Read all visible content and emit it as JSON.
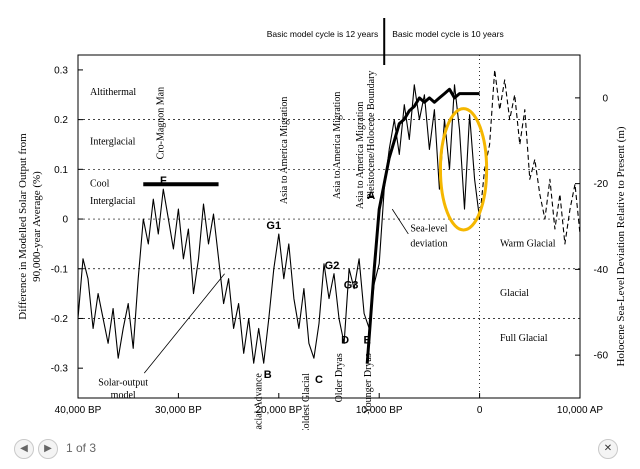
{
  "chart_data": {
    "type": "line",
    "y_left_label_line1": "Difference in Modelled Solar Output  from",
    "y_left_label_line2": "90,000-year Average (%)",
    "y_right_label": "Holocene Sea-Level Deviation Relative to Present (m)",
    "x_ticks": [
      {
        "value": -40000,
        "label": "40,000 BP"
      },
      {
        "value": -30000,
        "label": "30,000 BP"
      },
      {
        "value": -20000,
        "label": "20,000 BP"
      },
      {
        "value": -10000,
        "label": "10,000 BP"
      },
      {
        "value": 0,
        "label": "0"
      },
      {
        "value": 10000,
        "label": "10,000 AP"
      }
    ],
    "y_left_ticks": [
      {
        "value": 0.3,
        "label": "0.3"
      },
      {
        "value": 0.2,
        "label": "0.2"
      },
      {
        "value": 0.1,
        "label": "0.1"
      },
      {
        "value": 0,
        "label": "0"
      },
      {
        "value": -0.1,
        "label": "-0.1"
      },
      {
        "value": -0.2,
        "label": "-0.2"
      },
      {
        "value": -0.3,
        "label": "-0.3"
      }
    ],
    "y_right_ticks": [
      {
        "value": 0,
        "label": "0"
      },
      {
        "value": -20,
        "label": "-20"
      },
      {
        "value": -40,
        "label": "-40"
      },
      {
        "value": -60,
        "label": "-60"
      }
    ],
    "xlim": [
      -40000,
      10000
    ],
    "ylim_left": [
      -0.36,
      0.33
    ],
    "ylim_right": [
      -70,
      10
    ],
    "gridlines_y_left": [
      0.2,
      0.1,
      0,
      -0.1,
      -0.2
    ],
    "zone_labels_upper": [
      {
        "text": "Altithermal",
        "y": 0.25
      },
      {
        "text": "Interglacial",
        "y": 0.15
      },
      {
        "text": "Cool",
        "y": 0.065
      },
      {
        "text": "Interglacial",
        "y": 0.03
      }
    ],
    "zone_labels_lower": [
      {
        "text": "Warm Glacial",
        "y": -0.055
      },
      {
        "text": "Glacial",
        "y": -0.155
      },
      {
        "text": "Full Glacial",
        "y": -0.245
      }
    ],
    "events": [
      {
        "text": "Cro-Magnon Man",
        "x": -31500,
        "y": 0.12
      },
      {
        "text": "Asia to America Migration",
        "x": -19200,
        "y": 0.03
      },
      {
        "text": "Asia to America Migration",
        "x": -13900,
        "y": 0.04
      },
      {
        "text": "Pleistocene/Holocene Boundary",
        "x": -10500,
        "y": 0.04
      },
      {
        "text": "Asia to America Migration",
        "x": -11600,
        "y": 0.02
      }
    ],
    "lower_events": [
      {
        "text": "Farthest Glacial Advance",
        "x": -21700,
        "y": -0.31
      },
      {
        "text": "Coldest Glacial",
        "x": -17000,
        "y": -0.31
      },
      {
        "text": "Older Dryas",
        "x": -13700,
        "y": -0.27
      },
      {
        "text": "Younger Dryas",
        "x": -10800,
        "y": -0.27
      }
    ],
    "point_labels": [
      {
        "text": "F",
        "x": -31500,
        "y": 0.07
      },
      {
        "text": "G1",
        "x": -20500,
        "y": -0.02
      },
      {
        "text": "G2",
        "x": -14700,
        "y": -0.1
      },
      {
        "text": "G3",
        "x": -12800,
        "y": -0.14
      },
      {
        "text": "A",
        "x": -10800,
        "y": 0.04
      },
      {
        "text": "B",
        "x": -21100,
        "y": -0.32
      },
      {
        "text": "C",
        "x": -16000,
        "y": -0.33
      },
      {
        "text": "D",
        "x": -13400,
        "y": -0.25
      },
      {
        "text": "E",
        "x": -11200,
        "y": -0.25
      }
    ],
    "annotations": {
      "model_left": "Basic model cycle is 12 years",
      "model_right": "Basic model cycle is 10 years",
      "model_boundary_x": -9500,
      "sea_level_label_1": "Sea-level",
      "sea_level_label_2": "deviation",
      "solar_label_1": "Solar-output",
      "solar_label_2": "model",
      "cro_magnon_bar": {
        "x_start": -33500,
        "x_end": -26000,
        "y": 0.07
      },
      "present_line_x": 0,
      "highlight_ellipse": {
        "cx": -1600,
        "cy": 0.1,
        "rx": 2300,
        "ry": 0.122,
        "color": "#f5b700"
      }
    },
    "series": [
      {
        "id": "solar-output-model",
        "style": "thin",
        "x": [
          -40000,
          -39500,
          -39000,
          -38500,
          -38000,
          -37500,
          -37000,
          -36500,
          -36000,
          -35500,
          -35000,
          -34500,
          -34000,
          -33500,
          -33000,
          -32500,
          -32000,
          -31500,
          -31000,
          -30500,
          -30000,
          -29500,
          -29000,
          -28500,
          -28000,
          -27500,
          -27000,
          -26500,
          -26000,
          -25500,
          -25000,
          -24500,
          -24000,
          -23500,
          -23000,
          -22500,
          -22000,
          -21500,
          -21000,
          -20500,
          -20000,
          -19500,
          -19000,
          -18500,
          -18000,
          -17500,
          -17000,
          -16500,
          -16000,
          -15500,
          -15000,
          -14500,
          -14000,
          -13500,
          -13000,
          -12500,
          -12000,
          -11500,
          -11000,
          -10500,
          -10000,
          -9500,
          -9000,
          -8500,
          -8000,
          -7500,
          -7000,
          -6500,
          -6000,
          -5500,
          -5000,
          -4500,
          -4000,
          -3500,
          -3000,
          -2500,
          -2000,
          -1500,
          -1000,
          -500,
          0
        ],
        "y": [
          -0.2,
          -0.08,
          -0.12,
          -0.22,
          -0.15,
          -0.2,
          -0.25,
          -0.18,
          -0.28,
          -0.22,
          -0.17,
          -0.26,
          -0.12,
          0.0,
          -0.05,
          0.04,
          -0.03,
          0.06,
          0.0,
          -0.06,
          0.02,
          -0.08,
          -0.02,
          -0.15,
          -0.08,
          0.03,
          -0.05,
          0.01,
          -0.08,
          -0.17,
          -0.12,
          -0.22,
          -0.17,
          -0.27,
          -0.2,
          -0.29,
          -0.22,
          -0.29,
          -0.2,
          -0.1,
          -0.03,
          -0.12,
          -0.05,
          -0.16,
          -0.22,
          -0.14,
          -0.25,
          -0.28,
          -0.21,
          -0.09,
          -0.16,
          -0.11,
          -0.2,
          -0.25,
          -0.1,
          -0.14,
          -0.08,
          -0.19,
          -0.22,
          -0.13,
          -0.09,
          0.06,
          0.14,
          0.2,
          0.13,
          0.23,
          0.16,
          0.27,
          0.2,
          0.25,
          0.14,
          0.22,
          0.06,
          0.2,
          0.1,
          0.27,
          0.18,
          0.02,
          0.21,
          0.08,
          0.0
        ]
      },
      {
        "id": "solar-output-projection",
        "style": "dashed",
        "x": [
          0,
          500,
          1000,
          1500,
          2000,
          2500,
          3000,
          3500,
          4000,
          4500,
          5000,
          5500,
          6000,
          6500,
          7000,
          7500,
          8000,
          8500,
          9000,
          9500,
          10000
        ],
        "y": [
          0.0,
          0.1,
          0.15,
          0.3,
          0.22,
          0.28,
          0.2,
          0.25,
          0.15,
          0.22,
          0.08,
          0.12,
          0.05,
          0.0,
          0.08,
          -0.02,
          0.05,
          -0.05,
          0.02,
          0.07,
          -0.03
        ]
      },
      {
        "id": "sea-level-deviation",
        "style": "thick",
        "axis": "right",
        "x": [
          -11200,
          -10500,
          -10000,
          -9500,
          -9000,
          -8500,
          -8000,
          -7500,
          -7000,
          -6500,
          -6000,
          -5500,
          -5000,
          -4500,
          -4000,
          -3500,
          -3000,
          -2500,
          -2000,
          -1500,
          -1000,
          -500,
          0
        ],
        "y": [
          -62,
          -40,
          -26,
          -20,
          -14,
          -10,
          -6,
          -5,
          -3,
          -2,
          0,
          -1,
          0,
          -1,
          0,
          1,
          2,
          0,
          1,
          1,
          1,
          1,
          1
        ]
      }
    ]
  },
  "viewer": {
    "page_info": "1 of 3",
    "prev_icon": "◀",
    "next_icon": "▶",
    "close_icon": "✕"
  }
}
